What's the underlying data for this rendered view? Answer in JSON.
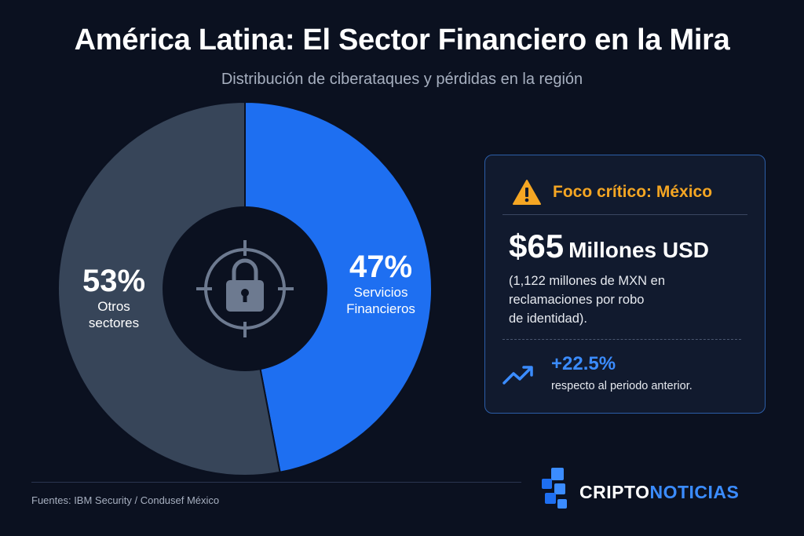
{
  "header": {
    "title": "América Latina: El Sector Financiero en la Mira",
    "subtitle": "Distribución de ciberataques y pérdidas en la región"
  },
  "chart_data": {
    "type": "pie",
    "style": "donut",
    "slices": [
      {
        "label": "Servicios Financieros",
        "value": 47,
        "display": "47%",
        "label_lines": [
          "Servicios",
          "Financieros"
        ],
        "color": "#1e6ff1"
      },
      {
        "label": "Otros sectores",
        "value": 53,
        "display": "53%",
        "label_lines": [
          "Otros",
          "sectores"
        ],
        "color": "#374559"
      }
    ],
    "center_icon": "padlock-crosshair-icon"
  },
  "card": {
    "icon": "warning-icon",
    "title": "Foco crítico: México",
    "amount": "$65",
    "amount_unit": "Millones USD",
    "amount_note": "(1,122 millones de MXN en\nreclamaciones por robo\nde identidad).",
    "growth_icon": "trending-up-icon",
    "growth": "+22.5%",
    "growth_note": "respecto al periodo anterior."
  },
  "footer": {
    "sources": "Fuentes: IBM Security / Condusef México",
    "brand_part1": "CRIPTO",
    "brand_part2": "NOTICIAS"
  },
  "colors": {
    "background": "#0b1120",
    "accent": "#1e6ff1",
    "warning": "#f5a623"
  }
}
